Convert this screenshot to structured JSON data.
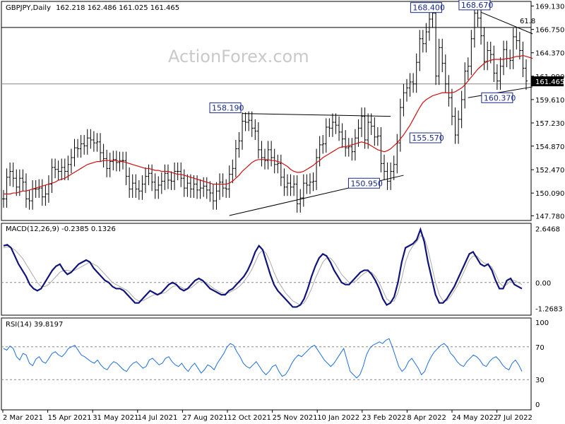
{
  "chart_data": [
    {
      "type": "candlestick",
      "title": "GBPJPY,Daily",
      "ohlc_readout": "162.218 162.486 161.025 161.465",
      "watermark": "ActionForex.com",
      "y_ticks": [
        "169.130",
        "166.750",
        "164.370",
        "161.990",
        "159.610",
        "157.230",
        "154.870",
        "152.470",
        "150.090",
        "147.780"
      ],
      "ylim": [
        147.3,
        169.6
      ],
      "last_price": "161.465",
      "x_ticks": [
        "2 Mar 2021",
        "15 Apr 2021",
        "31 May 2021",
        "14 Jul 2021",
        "27 Aug 2021",
        "12 Oct 2021",
        "25 Nov 2021",
        "10 Jan 2022",
        "23 Feb 2022",
        "8 Apr 2022",
        "24 May 2022",
        "7 Jul 2022"
      ],
      "fib_label": "61.8",
      "fib_level": 166.95,
      "horizontal_lines": [
        166.95,
        161.2
      ],
      "annotations": [
        {
          "text": "168.400",
          "bar": 131,
          "value": 168.4
        },
        {
          "text": "168.670",
          "bar": 146,
          "value": 168.67
        },
        {
          "text": "158.190",
          "bar": 74,
          "value": 158.19
        },
        {
          "text": "155.570",
          "bar": 136,
          "value": 155.57
        },
        {
          "text": "150.950",
          "bar": 117,
          "value": 150.95
        },
        {
          "text": "160.370",
          "bar": 153,
          "value": 160.37
        }
      ],
      "trendlines": [
        {
          "from": [
            70,
            147.8
          ],
          "to": [
            124,
            151.9
          ]
        },
        {
          "from": [
            74,
            158.19
          ],
          "to": [
            120,
            157.9
          ]
        },
        {
          "from": [
            148,
            168.5
          ],
          "to": [
            164,
            166.3
          ]
        },
        {
          "from": [
            144,
            159.8
          ],
          "to": [
            164,
            160.9
          ]
        }
      ],
      "close": [
        149.5,
        151.7,
        152.3,
        151.6,
        150.7,
        151.6,
        151.2,
        149.5,
        149.3,
        150.5,
        150.5,
        150.6,
        149.7,
        150.0,
        151.0,
        152.7,
        152.5,
        152.3,
        152.7,
        152.3,
        153.0,
        153.7,
        154.7,
        154.6,
        155.1,
        154.9,
        155.7,
        155.5,
        155.2,
        155.3,
        154.2,
        153.6,
        152.6,
        153.3,
        153.5,
        153.2,
        153.4,
        153.4,
        151.8,
        150.5,
        151.1,
        150.5,
        150.3,
        151.0,
        151.8,
        152.1,
        151.2,
        150.4,
        150.9,
        151.3,
        152.1,
        151.4,
        151.3,
        152.3,
        152.3,
        151.6,
        150.6,
        151.1,
        150.5,
        151.0,
        150.4,
        150.6,
        150.8,
        150.4,
        150.1,
        149.3,
        150.3,
        151.2,
        150.6,
        150.5,
        152.0,
        152.6,
        154.6,
        155.4,
        157.4,
        157.3,
        157.5,
        156.7,
        156.4,
        154.5,
        153.7,
        153.4,
        154.5,
        153.7,
        153.0,
        153.1,
        151.7,
        150.7,
        151.1,
        150.7,
        151.0,
        149.0,
        149.6,
        151.1,
        150.9,
        151.2,
        151.3,
        153.7,
        155.0,
        155.1,
        156.8,
        156.7,
        157.3,
        157.0,
        156.3,
        155.6,
        154.7,
        154.8,
        154.3,
        155.7,
        156.7,
        157.9,
        155.5,
        157.3,
        156.9,
        155.8,
        155.9,
        153.1,
        152.3,
        151.3,
        152.3,
        153.0,
        155.2,
        158.8,
        160.3,
        160.8,
        161.4,
        161.2,
        163.4,
        165.8,
        165.3,
        166.5,
        167.8,
        168.4,
        162.0,
        164.9,
        163.3,
        161.2,
        159.8,
        157.9,
        156.0,
        157.6,
        159.6,
        162.5,
        163.0,
        165.8,
        168.4,
        167.9,
        166.1,
        163.5,
        164.6,
        164.2,
        162.3,
        161.5,
        163.0,
        164.7,
        163.8,
        163.6,
        166.0,
        165.6,
        164.6,
        162.8,
        161.5
      ],
      "ma": [
        150.0,
        150.0,
        150.0,
        150.1,
        150.1,
        150.2,
        150.3,
        150.3,
        150.4,
        150.5,
        150.6,
        150.7,
        150.8,
        150.9,
        151.0,
        151.1,
        151.2,
        151.4,
        151.5,
        151.6,
        151.8,
        152.0,
        152.2,
        152.4,
        152.6,
        152.8,
        153.0,
        153.1,
        153.2,
        153.3,
        153.3,
        153.4,
        153.4,
        153.4,
        153.4,
        153.4,
        153.3,
        153.3,
        153.2,
        153.1,
        153.0,
        152.9,
        152.8,
        152.7,
        152.6,
        152.6,
        152.5,
        152.4,
        152.4,
        152.3,
        152.3,
        152.3,
        152.2,
        152.1,
        152.0,
        152.0,
        151.9,
        151.8,
        151.7,
        151.6,
        151.5,
        151.4,
        151.3,
        151.2,
        151.1,
        151.0,
        151.0,
        151.0,
        151.0,
        151.0,
        151.1,
        151.3,
        151.6,
        151.9,
        152.3,
        152.6,
        152.9,
        153.2,
        153.4,
        153.5,
        153.5,
        153.5,
        153.5,
        153.4,
        153.4,
        153.3,
        153.2,
        153.0,
        152.8,
        152.5,
        152.3,
        152.2,
        152.2,
        152.3,
        152.5,
        152.7,
        152.9,
        153.2,
        153.4,
        153.7,
        153.9,
        154.1,
        154.3,
        154.5,
        154.7,
        154.8,
        154.8,
        154.9,
        155.0,
        155.1,
        155.2,
        155.3,
        155.2,
        155.1,
        154.9,
        154.7,
        154.5,
        154.4,
        154.3,
        154.4,
        154.6,
        154.9,
        155.2,
        155.6,
        156.0,
        156.5,
        157.0,
        157.6,
        158.2,
        158.8,
        159.3,
        159.6,
        159.8,
        160.0,
        160.1,
        160.2,
        160.3,
        160.3,
        160.3,
        160.3,
        160.4,
        160.6,
        160.8,
        161.1,
        161.5,
        161.9,
        162.3,
        162.7,
        163.0,
        163.3,
        163.5,
        163.6,
        163.7,
        163.7,
        163.7,
        163.7,
        163.8,
        163.8,
        163.9,
        164.0,
        164.0,
        164.1,
        164.0,
        163.9,
        163.8
      ]
    },
    {
      "type": "line",
      "title": "MACD(12,26,9) -0.2385 0.1326",
      "y_ticks": [
        "2.6468",
        "0.00",
        "-1.2683"
      ],
      "ylim": [
        -1.6,
        2.9
      ],
      "series": [
        {
          "values": [
            1.8,
            1.85,
            1.7,
            1.3,
            0.9,
            0.6,
            0.3,
            -0.1,
            -0.3,
            -0.4,
            -0.3,
            0.0,
            0.3,
            0.6,
            0.8,
            0.9,
            0.6,
            0.4,
            0.5,
            0.7,
            0.9,
            1.0,
            1.1,
            1.0,
            0.7,
            0.5,
            0.3,
            0.1,
            0.0,
            -0.2,
            -0.3,
            -0.3,
            -0.4,
            -0.6,
            -0.8,
            -1.0,
            -1.0,
            -0.8,
            -0.6,
            -0.4,
            -0.5,
            -0.6,
            -0.5,
            -0.3,
            -0.1,
            0.0,
            -0.1,
            -0.3,
            -0.4,
            -0.3,
            -0.1,
            0.1,
            0.2,
            0.1,
            -0.1,
            -0.3,
            -0.4,
            -0.5,
            -0.6,
            -0.6,
            -0.4,
            -0.3,
            -0.1,
            0.1,
            0.3,
            0.6,
            1.0,
            1.5,
            1.8,
            1.6,
            1.0,
            0.4,
            -0.1,
            -0.4,
            -0.6,
            -0.8,
            -1.0,
            -1.2,
            -1.2,
            -1.1,
            -0.8,
            -0.3,
            0.3,
            0.8,
            1.2,
            1.4,
            1.3,
            1.0,
            0.6,
            0.3,
            0.0,
            -0.1,
            -0.1,
            0.1,
            0.3,
            0.5,
            0.6,
            0.6,
            0.4,
            0.1,
            -0.3,
            -0.8,
            -1.1,
            -1.0,
            -0.7,
            0.0,
            1.0,
            1.7,
            1.8,
            1.9,
            2.1,
            2.6,
            2.0,
            1.0,
            0.2,
            -0.6,
            -1.0,
            -1.0,
            -0.8,
            -0.5,
            -0.2,
            0.2,
            0.6,
            1.0,
            1.4,
            1.5,
            1.2,
            0.9,
            0.8,
            0.9,
            0.6,
            0.1,
            -0.3,
            -0.3,
            0.1,
            0.2,
            -0.1,
            -0.2,
            -0.3
          ]
        },
        {
          "values": [
            1.7,
            1.75,
            1.7,
            1.6,
            1.4,
            1.2,
            0.9,
            0.6,
            0.3,
            0.0,
            -0.2,
            -0.2,
            -0.1,
            0.1,
            0.3,
            0.5,
            0.6,
            0.6,
            0.55,
            0.6,
            0.7,
            0.8,
            0.9,
            1.0,
            0.9,
            0.8,
            0.6,
            0.4,
            0.2,
            0.0,
            -0.1,
            -0.2,
            -0.3,
            -0.4,
            -0.6,
            -0.8,
            -0.9,
            -0.9,
            -0.8,
            -0.7,
            -0.6,
            -0.6,
            -0.55,
            -0.5,
            -0.35,
            -0.2,
            -0.15,
            -0.2,
            -0.3,
            -0.3,
            -0.25,
            -0.1,
            0.05,
            0.1,
            0.0,
            -0.15,
            -0.3,
            -0.4,
            -0.5,
            -0.55,
            -0.5,
            -0.4,
            -0.3,
            -0.15,
            0.05,
            0.3,
            0.6,
            1.0,
            1.4,
            1.6,
            1.4,
            1.0,
            0.5,
            0.1,
            -0.2,
            -0.5,
            -0.7,
            -0.9,
            -1.0,
            -1.1,
            -1.0,
            -0.7,
            -0.3,
            0.2,
            0.6,
            1.0,
            1.2,
            1.2,
            1.0,
            0.7,
            0.4,
            0.2,
            0.0,
            0.0,
            0.1,
            0.3,
            0.45,
            0.55,
            0.5,
            0.3,
            0.0,
            -0.4,
            -0.8,
            -0.95,
            -0.9,
            -0.5,
            0.2,
            1.0,
            1.5,
            1.8,
            2.0,
            2.3,
            2.2,
            1.6,
            0.8,
            0.0,
            -0.6,
            -0.9,
            -0.9,
            -0.7,
            -0.4,
            -0.1,
            0.3,
            0.7,
            1.1,
            1.3,
            1.3,
            1.1,
            0.95,
            0.9,
            0.75,
            0.4,
            0.0,
            -0.2,
            -0.1,
            0.1,
            0.1,
            0.0,
            -0.1
          ]
        }
      ]
    },
    {
      "type": "line",
      "title": "RSI(14) 39.8197",
      "y_ticks": [
        "100",
        "70",
        "30",
        "0"
      ],
      "ylim": [
        0,
        100
      ],
      "levels": [
        70,
        30
      ],
      "series": [
        {
          "values": [
            68,
            66,
            71,
            68,
            58,
            54,
            62,
            60,
            50,
            47,
            55,
            58,
            52,
            50,
            56,
            62,
            64,
            60,
            58,
            62,
            68,
            70,
            72,
            66,
            60,
            58,
            55,
            52,
            50,
            54,
            48,
            44,
            42,
            48,
            52,
            50,
            46,
            42,
            40,
            46,
            50,
            52,
            48,
            44,
            46,
            54,
            56,
            52,
            48,
            50,
            56,
            58,
            52,
            48,
            46,
            50,
            44,
            40,
            46,
            50,
            44,
            38,
            42,
            48,
            46,
            42,
            50,
            56,
            62,
            70,
            74,
            72,
            64,
            58,
            50,
            46,
            44,
            48,
            52,
            46,
            40,
            36,
            40,
            46,
            48,
            40,
            34,
            36,
            42,
            50,
            56,
            60,
            58,
            62,
            66,
            70,
            72,
            66,
            60,
            54,
            50,
            46,
            50,
            56,
            62,
            68,
            54,
            40,
            36,
            32,
            36,
            46,
            60,
            68,
            72,
            74,
            76,
            74,
            78,
            80,
            70,
            58,
            46,
            40,
            44,
            52,
            56,
            50,
            44,
            36,
            40,
            50,
            58,
            64,
            68,
            72,
            74,
            70,
            62,
            58,
            52,
            48,
            46,
            52,
            56,
            60,
            58,
            54,
            48,
            46,
            52,
            56,
            58,
            54,
            48,
            44,
            42,
            50,
            54,
            48,
            40
          ]
        }
      ]
    }
  ]
}
